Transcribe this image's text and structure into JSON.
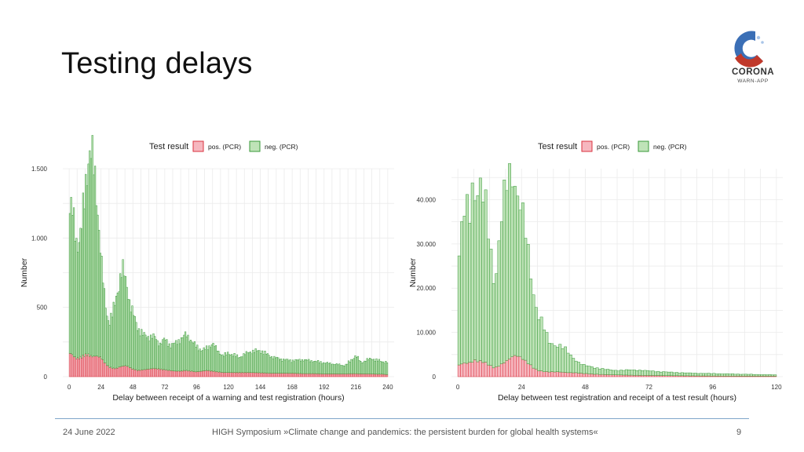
{
  "slide": {
    "title": "Testing delays",
    "footer_date": "24 June 2022",
    "footer_center": "HIGH Symposium »Climate change and pandemics: the persistent burden for global health systems«",
    "page_number": "9"
  },
  "logo": {
    "line1": "CORONA",
    "line2": "WARN-APP",
    "colors": [
      "#3b6fb6",
      "#c0392b",
      "#a9c5e8"
    ]
  },
  "colors": {
    "pos_fill": "#f6b7bf",
    "pos_stroke": "#d9333f",
    "neg_fill": "#bfe3b8",
    "neg_stroke": "#3a9a3a",
    "grid": "#ebebeb",
    "footer_line": "#7fa6c9"
  },
  "chart_data": [
    {
      "type": "bar",
      "stacked": true,
      "legend_title": "Test result",
      "legend_position": "top",
      "xlabel": "Delay between receipt of a warning and test registration (hours)",
      "ylabel": "Number",
      "xlim": [
        0,
        240
      ],
      "ylim": [
        0,
        1500
      ],
      "xticks": [
        0,
        24,
        48,
        72,
        96,
        120,
        144,
        168,
        192,
        216,
        240
      ],
      "yticks": [
        0,
        500,
        1000,
        1500
      ],
      "ytick_labels": [
        "0",
        "500",
        "1.000",
        "1.500"
      ],
      "grid": true,
      "x_anchors": [
        0,
        1,
        3,
        6,
        9,
        12,
        14,
        16,
        18,
        20,
        22,
        24,
        26,
        28,
        30,
        33,
        36,
        38,
        40,
        42,
        44,
        46,
        48,
        52,
        56,
        60,
        64,
        68,
        72,
        76,
        80,
        84,
        88,
        92,
        96,
        100,
        104,
        108,
        112,
        116,
        120,
        128,
        136,
        144,
        152,
        160,
        168,
        176,
        184,
        192,
        200,
        208,
        216,
        220,
        224,
        228,
        232,
        236,
        240
      ],
      "series": [
        {
          "name": "pos. (PCR)",
          "values": [
            160,
            175,
            150,
            130,
            140,
            155,
            160,
            150,
            145,
            150,
            145,
            140,
            110,
            90,
            70,
            60,
            60,
            70,
            75,
            80,
            75,
            65,
            55,
            45,
            50,
            55,
            60,
            55,
            50,
            45,
            40,
            40,
            45,
            40,
            35,
            40,
            45,
            40,
            35,
            30,
            30,
            30,
            30,
            28,
            25,
            25,
            25,
            22,
            22,
            20,
            20,
            20,
            22,
            20,
            20,
            20,
            18,
            18,
            15
          ]
        },
        {
          "name": "neg. (PCR)",
          "values": [
            950,
            1070,
            1000,
            820,
            900,
            1180,
            1400,
            1490,
            1400,
            1230,
            1000,
            720,
            520,
            380,
            320,
            400,
            540,
            620,
            700,
            640,
            560,
            450,
            400,
            300,
            250,
            230,
            230,
            180,
            220,
            180,
            200,
            230,
            260,
            220,
            180,
            150,
            160,
            200,
            150,
            120,
            140,
            110,
            150,
            160,
            120,
            100,
            90,
            100,
            90,
            80,
            70,
            60,
            130,
            80,
            100,
            110,
            100,
            90,
            90
          ]
        }
      ]
    },
    {
      "type": "bar",
      "stacked": true,
      "legend_title": "Test result",
      "legend_position": "top",
      "xlabel": "Delay between test registration and receipt of a test result (hours)",
      "ylabel": "Number",
      "xlim": [
        0,
        120
      ],
      "ylim": [
        0,
        47000
      ],
      "xticks": [
        0,
        24,
        48,
        72,
        96,
        120
      ],
      "yticks": [
        0,
        10000,
        20000,
        30000,
        40000
      ],
      "ytick_labels": [
        "0",
        "10.000",
        "20.000",
        "30.000",
        "40.000"
      ],
      "grid": true,
      "x_anchors": [
        0,
        1,
        2,
        3,
        4,
        5,
        6,
        7,
        8,
        9,
        10,
        11,
        12,
        13,
        14,
        15,
        16,
        17,
        18,
        19,
        20,
        21,
        22,
        23,
        24,
        25,
        26,
        27,
        28,
        29,
        30,
        31,
        32,
        34,
        36,
        38,
        40,
        42,
        44,
        46,
        48,
        52,
        56,
        60,
        64,
        68,
        72,
        80,
        88,
        96,
        104,
        112,
        120
      ],
      "series": [
        {
          "name": "pos. (PCR)",
          "values": [
            2500,
            2800,
            3000,
            3200,
            3000,
            3300,
            3500,
            3800,
            3300,
            3600,
            3200,
            3000,
            2600,
            2200,
            2000,
            2300,
            2600,
            3000,
            3400,
            3800,
            4300,
            4700,
            4800,
            4600,
            4300,
            3800,
            3300,
            2800,
            2300,
            1800,
            1500,
            1300,
            1200,
            1100,
            1100,
            1100,
            1000,
            900,
            900,
            800,
            700,
            550,
            450,
            400,
            350,
            300,
            280,
            220,
            180,
            150,
            130,
            110,
            100
          ]
        },
        {
          "name": "neg. (PCR)",
          "values": [
            20500,
            28800,
            31300,
            35800,
            33000,
            35700,
            43500,
            35200,
            41700,
            37400,
            36300,
            33000,
            27400,
            22800,
            19000,
            24700,
            31400,
            35000,
            38600,
            41200,
            40700,
            42300,
            37200,
            36400,
            33700,
            30200,
            26700,
            22200,
            18700,
            15200,
            13500,
            11700,
            10800,
            6900,
            6100,
            6100,
            5500,
            4100,
            3100,
            2200,
            1800,
            1450,
            1150,
            1000,
            1150,
            1200,
            1020,
            780,
            620,
            550,
            470,
            390,
            300
          ]
        }
      ]
    }
  ]
}
